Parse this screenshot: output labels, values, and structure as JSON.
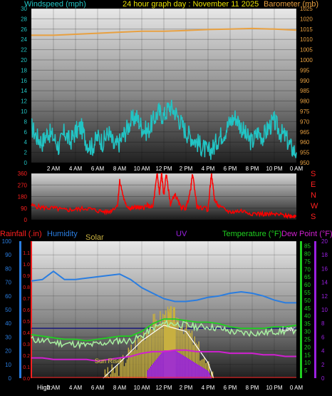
{
  "header": {
    "left_title": "Windspeed (mph)",
    "center_title": "24 hour graph day : November 11 2025",
    "right_title": "Barometer (mb)"
  },
  "colors": {
    "wind": "#22c4c4",
    "barometer": "#e8a040",
    "direction": "#ff0000",
    "rainfall": "#ff2020",
    "humidity": "#2a7de0",
    "solar": "#c8b040",
    "uv": "#9a20e0",
    "temperature": "#20d020",
    "dewpoint": "#d020d0",
    "axis_blue": "#2a7de0",
    "axis_green": "#20d020",
    "axis_purple": "#9a20e0"
  },
  "x_ticks": [
    "2 AM",
    "4 AM",
    "6 AM",
    "8 AM",
    "10 AM",
    "12 PM",
    "2 PM",
    "4 PM",
    "6 PM",
    "8 PM",
    "10 PM",
    "0 AM"
  ],
  "chart_data": [
    {
      "type": "line",
      "title": "24 hour graph day : November 11 2025",
      "xlabel": "",
      "x_unit": "hours",
      "xlim": [
        0,
        24
      ],
      "y_left": {
        "label": "Windspeed (mph)",
        "range": [
          0,
          30
        ],
        "ticks": [
          0,
          2,
          4,
          6,
          8,
          10,
          12,
          14,
          16,
          18,
          20,
          22,
          24,
          26,
          28,
          30
        ]
      },
      "y_right": {
        "label": "Barometer (mb)",
        "range": [
          950,
          1025
        ],
        "ticks": [
          950,
          955,
          960,
          965,
          970,
          975,
          980,
          985,
          990,
          995,
          1000,
          1005,
          1010,
          1015,
          1020,
          1025
        ]
      },
      "series": [
        {
          "name": "Windspeed (mph)",
          "axis": "left",
          "x": [
            0,
            0.5,
            1,
            1.5,
            2,
            2.5,
            3,
            3.5,
            4,
            4.5,
            5,
            5.5,
            6,
            6.5,
            7,
            7.5,
            8,
            8.5,
            9,
            9.5,
            10,
            10.5,
            11,
            11.5,
            12,
            12.5,
            13,
            13.5,
            14,
            14.5,
            15,
            15.5,
            16,
            16.5,
            17,
            17.5,
            18,
            18.5,
            19,
            19.5,
            20,
            20.5,
            21,
            21.5,
            22,
            22.5,
            23,
            23.5,
            24
          ],
          "y": [
            7,
            5,
            4,
            6,
            5,
            3,
            6,
            4,
            6,
            7,
            4,
            3,
            5,
            4,
            6,
            3,
            4,
            6,
            8,
            9,
            7,
            6,
            8,
            10,
            9,
            11,
            10,
            8,
            6,
            5,
            4,
            3,
            2,
            3,
            5,
            6,
            8,
            9,
            7,
            5,
            4,
            6,
            5,
            7,
            8,
            6,
            5,
            3,
            2
          ]
        },
        {
          "name": "Barometer (mb)",
          "axis": "right",
          "x": [
            0,
            2,
            4,
            6,
            8,
            10,
            12,
            14,
            16,
            18,
            20,
            22,
            24
          ],
          "y": [
            1012,
            1012,
            1012.5,
            1013,
            1013.5,
            1014,
            1014,
            1014.3,
            1014.8,
            1015,
            1015.3,
            1015,
            1014.5
          ]
        }
      ]
    },
    {
      "type": "scatter",
      "title": "",
      "xlim": [
        0,
        24
      ],
      "y_left": {
        "range": [
          0,
          360
        ],
        "ticks": [
          0,
          90,
          180,
          270,
          360
        ]
      },
      "y_right_labels": [
        "S",
        "E",
        "N",
        "W",
        "S"
      ],
      "series": [
        {
          "name": "Wind direction",
          "x": [
            0,
            1,
            2,
            3,
            4,
            5,
            6,
            7,
            7.8,
            8,
            8.5,
            9,
            9.5,
            10,
            10.5,
            11,
            11.4,
            11.6,
            11.8,
            12,
            12.2,
            12.6,
            13,
            13.5,
            14,
            14.4,
            14.6,
            15,
            16,
            16.3,
            16.6,
            17,
            18,
            19,
            20,
            21,
            22,
            23,
            23.5,
            24
          ],
          "y": [
            110,
            95,
            90,
            75,
            80,
            90,
            70,
            60,
            110,
            300,
            120,
            85,
            100,
            90,
            110,
            95,
            360,
            200,
            360,
            180,
            360,
            120,
            200,
            100,
            90,
            220,
            360,
            100,
            80,
            360,
            150,
            100,
            60,
            70,
            50,
            45,
            40,
            35,
            30,
            30
          ]
        }
      ]
    },
    {
      "type": "line",
      "title": "",
      "xlim": [
        0,
        24
      ],
      "axes": {
        "humidity": {
          "label": "Humidity",
          "range": [
            0,
            100
          ],
          "ticks": [
            0,
            10,
            20,
            30,
            40,
            50,
            60,
            70,
            80,
            90,
            100
          ]
        },
        "rainfall": {
          "label": "Rainfall (.in)",
          "range": [
            0,
            1.2
          ],
          "ticks": [
            0.0,
            0.1,
            0.2,
            0.3,
            0.4,
            0.5,
            0.6,
            0.7,
            0.8,
            0.9,
            1.0,
            1.1
          ]
        },
        "temperature": {
          "label": "Temperature (°F)",
          "range": [
            0,
            85
          ],
          "ticks": [
            5,
            10,
            15,
            20,
            25,
            30,
            35,
            40,
            45,
            50,
            55,
            60,
            65,
            70,
            75,
            80,
            85
          ]
        },
        "uv": {
          "label": "UV",
          "range": [
            0,
            20
          ],
          "ticks": [
            0,
            2,
            4,
            6,
            8,
            10,
            12,
            14,
            16,
            18,
            20
          ]
        }
      },
      "legend": [
        "Rainfall (.in)",
        "Humidity",
        "Solar",
        "UV",
        "Temperature (°F)",
        "Dew Point (°F)"
      ],
      "series": [
        {
          "name": "Humidity",
          "axis": "humidity",
          "x": [
            0,
            1,
            2,
            3,
            4,
            5,
            6,
            7,
            8,
            9,
            10,
            11,
            12,
            13,
            14,
            15,
            16,
            17,
            18,
            19,
            20,
            21,
            22,
            23,
            24
          ],
          "y": [
            71,
            72,
            78,
            72,
            72,
            73,
            74,
            75,
            76,
            72,
            66,
            62,
            58,
            56,
            56,
            57,
            59,
            60,
            62,
            63,
            62,
            60,
            57,
            55,
            55
          ]
        },
        {
          "name": "Temperature (°F)",
          "axis": "temperature",
          "x": [
            0,
            1,
            2,
            3,
            4,
            5,
            6,
            7,
            8,
            9,
            10,
            11,
            12,
            13,
            14,
            15,
            16,
            17,
            18,
            19,
            20,
            21,
            22,
            23,
            24
          ],
          "y": [
            28,
            27,
            26,
            25,
            25,
            24,
            25,
            26,
            27,
            27,
            30,
            35,
            38,
            38,
            37,
            36,
            36,
            35,
            33,
            32,
            32,
            32,
            33,
            33,
            34
          ]
        },
        {
          "name": "Dew Point (°F)",
          "axis": "temperature",
          "x": [
            0,
            1,
            2,
            3,
            4,
            5,
            6,
            7,
            8,
            9,
            10,
            11,
            12,
            13,
            14,
            15,
            16,
            17,
            18,
            19,
            20,
            21,
            22,
            23,
            24
          ],
          "y": [
            13,
            13,
            12,
            12,
            12,
            12,
            11,
            12,
            13,
            14,
            16,
            17,
            17,
            18,
            18,
            17,
            17,
            17,
            16,
            16,
            16,
            15,
            15,
            14,
            14
          ]
        },
        {
          "name": "Rainfall (.in)",
          "axis": "rainfall",
          "x": [
            0,
            24
          ],
          "y": [
            0,
            0
          ]
        },
        {
          "name": "Solar",
          "axis": "temperature",
          "x": [
            6.5,
            7,
            8,
            9,
            10,
            11,
            12,
            12.5,
            13,
            14,
            15,
            16,
            16.5
          ],
          "y": [
            0,
            2,
            8,
            18,
            28,
            36,
            40,
            41,
            40,
            32,
            20,
            6,
            0
          ]
        },
        {
          "name": "UV",
          "axis": "uv",
          "x": [
            10.5,
            11,
            12,
            13,
            14,
            15,
            16,
            16.3
          ],
          "y": [
            1,
            2,
            4,
            4,
            3,
            2,
            1,
            0
          ]
        },
        {
          "name": "Sun Rise",
          "axis": "temperature",
          "x": [
            6.5,
            8,
            10,
            12,
            14,
            16,
            16.5
          ],
          "y": [
            0,
            10,
            24,
            34,
            30,
            10,
            0
          ]
        }
      ],
      "reference_line": {
        "axis": "temperature",
        "value": 32
      },
      "annotations": [
        "Sun Rise",
        "High:",
        "Low:"
      ]
    }
  ],
  "bottom_labels": {
    "high": "High:",
    "low": "Low:",
    "sunrise": "Sun Rise"
  }
}
